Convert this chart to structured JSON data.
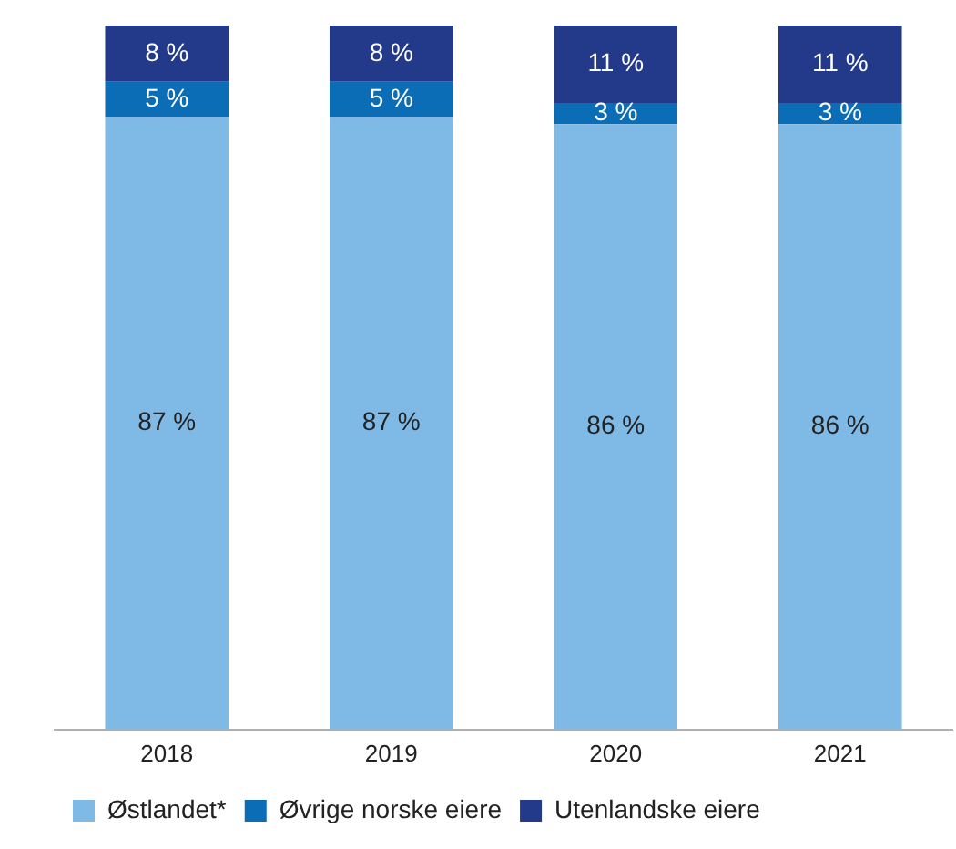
{
  "chart_data": {
    "type": "bar",
    "stacked": true,
    "categories": [
      "2018",
      "2019",
      "2020",
      "2021"
    ],
    "ylim": [
      0,
      100
    ],
    "grid": false,
    "legend": "bottom",
    "series": [
      {
        "name": "Østlandet*",
        "color": "#7fb9e6",
        "values": [
          87,
          87,
          86,
          86
        ],
        "value_labels": [
          "87 %",
          "87 %",
          "86 %",
          "86 %"
        ]
      },
      {
        "name": "Øvrige norske eiere",
        "color": "#0a6db5",
        "values": [
          5,
          5,
          3,
          3
        ],
        "value_labels": [
          "5 %",
          "5 %",
          "3 %",
          "3 %"
        ]
      },
      {
        "name": "Utenlandske eiere",
        "color": "#23398a",
        "values": [
          8,
          8,
          11,
          11
        ],
        "value_labels": [
          "8 %",
          "8 %",
          "11 %",
          "11 %"
        ]
      }
    ]
  }
}
